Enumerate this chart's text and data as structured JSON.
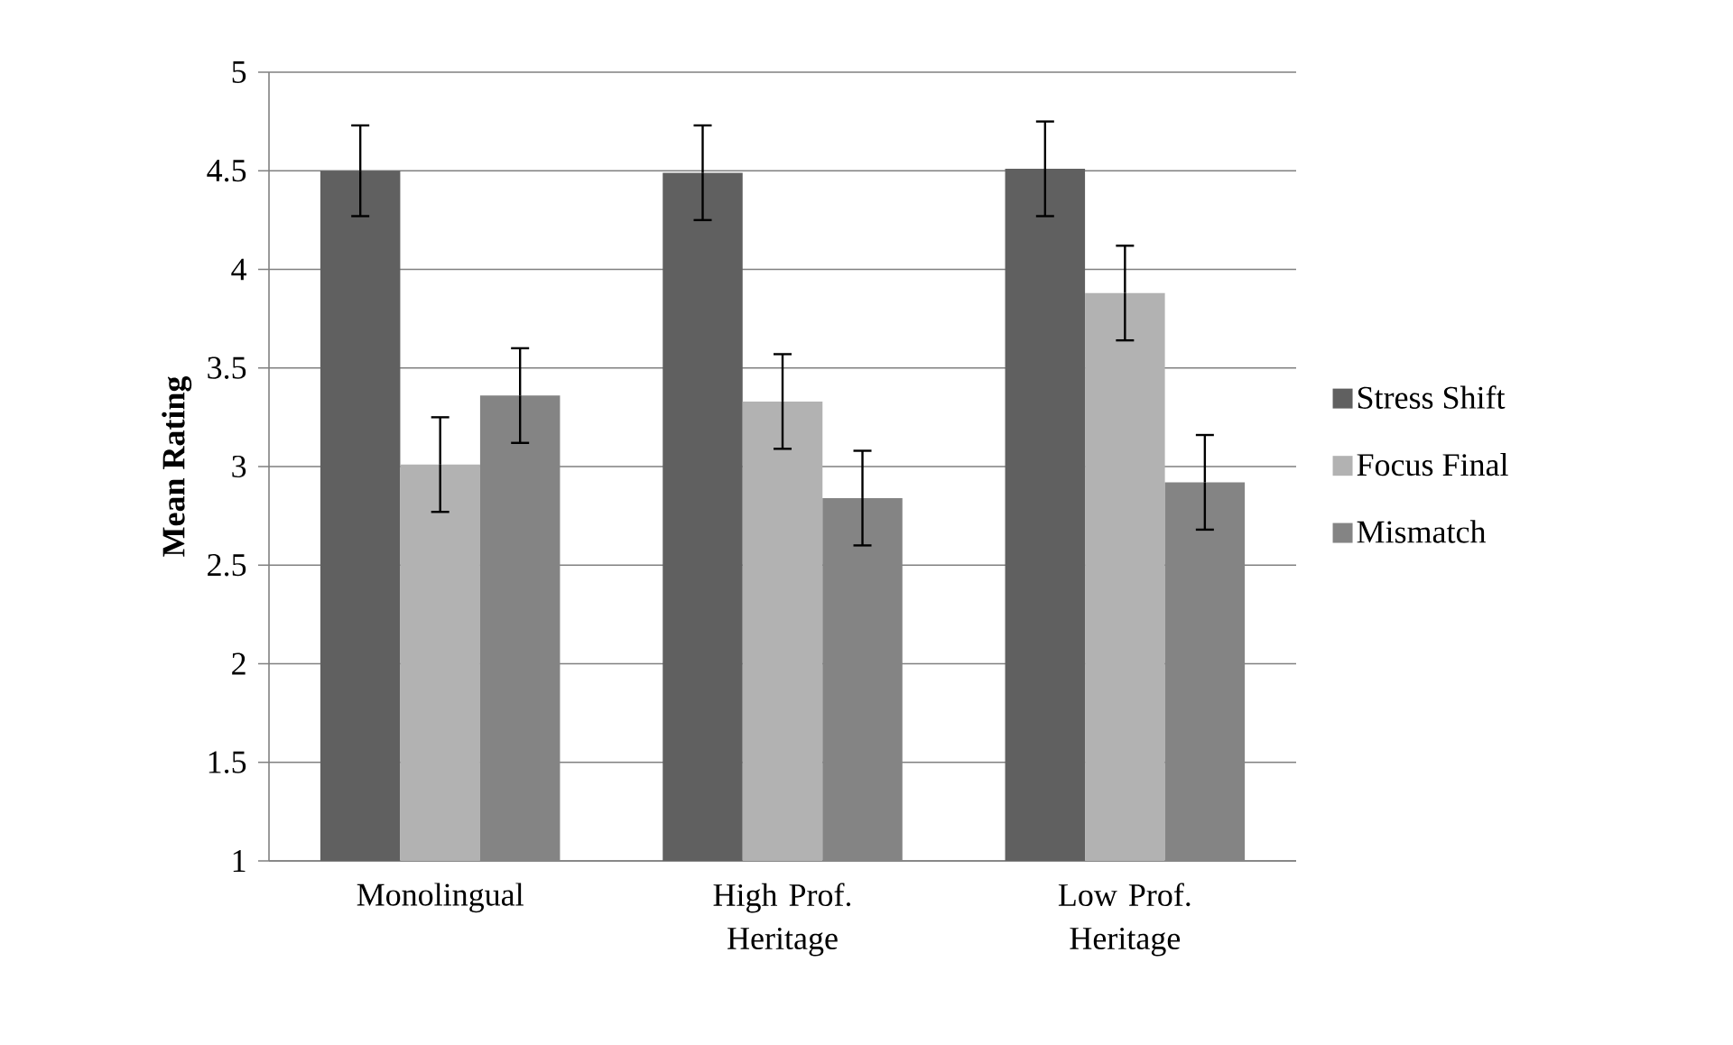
{
  "chart_data": {
    "type": "bar",
    "ylabel": "Mean Rating",
    "categories": [
      "Monolingual",
      "High Prof. Heritage",
      "Low Prof. Heritage"
    ],
    "series": [
      {
        "name": "Stress Shift",
        "color": "#606060",
        "values": [
          4.5,
          4.49,
          4.51
        ],
        "errors": [
          0.23,
          0.24,
          0.24
        ]
      },
      {
        "name": "Focus Final",
        "color": "#b2b2b2",
        "values": [
          3.01,
          3.33,
          3.88
        ],
        "errors": [
          0.24,
          0.24,
          0.24
        ]
      },
      {
        "name": "Mismatch",
        "color": "#848484",
        "values": [
          3.36,
          2.84,
          2.92
        ],
        "errors": [
          0.24,
          0.24,
          0.24
        ]
      }
    ],
    "ylim": [
      1,
      5
    ],
    "yticks": [
      1,
      1.5,
      2,
      2.5,
      3,
      3.5,
      4,
      4.5,
      5
    ],
    "grid": "y",
    "legend": "right"
  }
}
